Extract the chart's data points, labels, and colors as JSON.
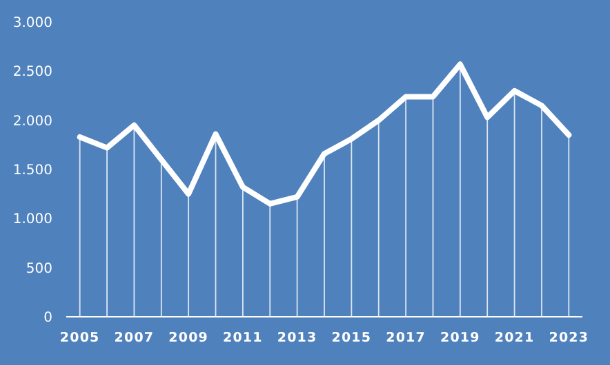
{
  "chart_data": {
    "type": "line",
    "categories": [
      "2005",
      null,
      "2007",
      null,
      "2009",
      null,
      "2011",
      null,
      "2013",
      null,
      "2015",
      null,
      "2017",
      null,
      "2019",
      null,
      "2021",
      null,
      "2023"
    ],
    "series": [
      {
        "type": "bar",
        "color": "#ffffff",
        "values": [
          1830,
          1720,
          1950,
          1600,
          1250,
          1860,
          1320,
          1150,
          1220,
          1660,
          1810,
          2000,
          2240,
          2240,
          2570,
          2030,
          2300,
          2150,
          1850
        ]
      },
      {
        "color": "#ffffff",
        "values": [
          1830,
          1720,
          1950,
          1600,
          1250,
          1860,
          1320,
          1150,
          1220,
          1660,
          1810,
          2000,
          2240,
          2240,
          2570,
          2030,
          2300,
          2150,
          1850
        ]
      }
    ],
    "ylim": [
      0,
      3000
    ],
    "yticks": [
      {
        "value": 0,
        "label": "0"
      },
      {
        "value": 500,
        "label": "500"
      },
      {
        "value": 1000,
        "label": "1.000"
      },
      {
        "value": 1500,
        "label": "1.500"
      },
      {
        "value": 2000,
        "label": "2.000"
      },
      {
        "value": 2500,
        "label": "2.500"
      },
      {
        "value": 3000,
        "label": "3.000"
      }
    ],
    "grid": false,
    "marker": "none",
    "line_style": "solid"
  }
}
